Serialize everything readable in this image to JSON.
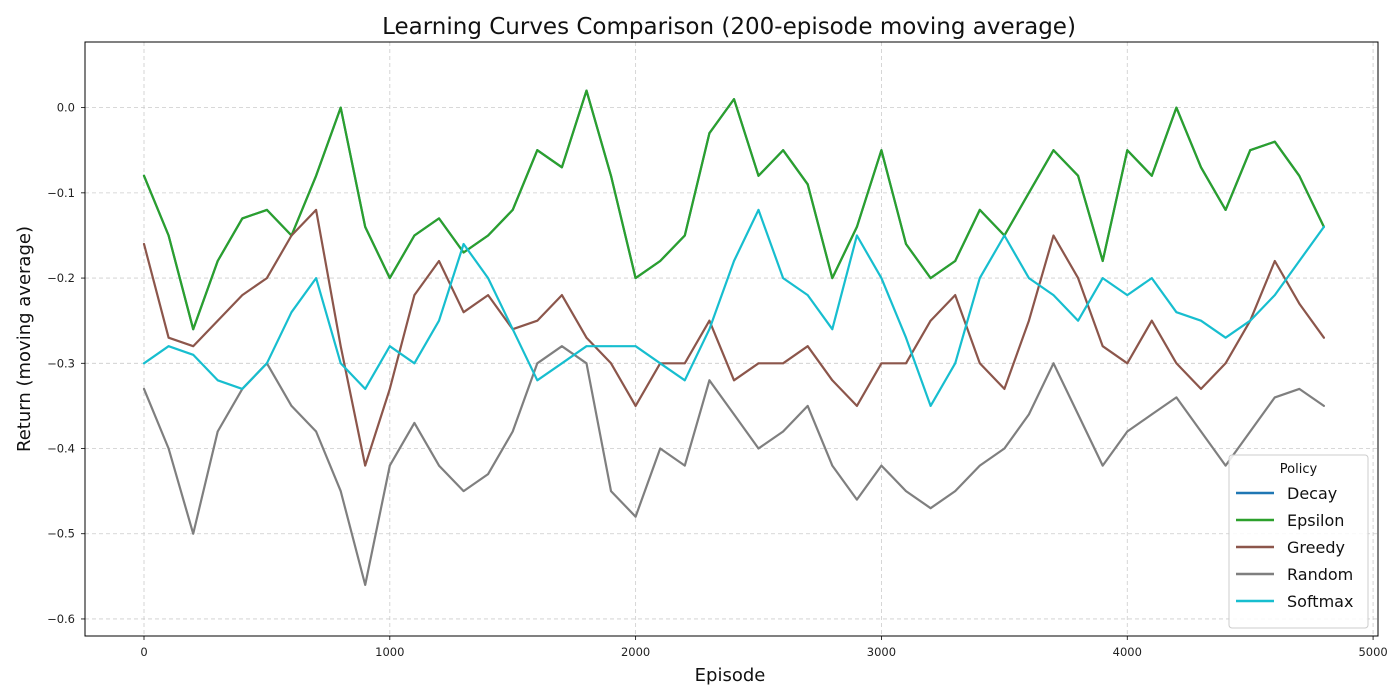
{
  "chart_data": {
    "type": "line",
    "title": "Learning Curves Comparison (200-episode moving average)",
    "xlabel": "Episode",
    "ylabel": "Return (moving average)",
    "xlim": [
      -240,
      5020
    ],
    "ylim": [
      -0.62,
      0.077
    ],
    "xticks": [
      0,
      1000,
      2000,
      3000,
      4000,
      5000
    ],
    "yticks": [
      -0.6,
      -0.5,
      -0.4,
      -0.3,
      -0.2,
      -0.1,
      0.0
    ],
    "xtick_labels": [
      "0",
      "1000",
      "2000",
      "3000",
      "4000",
      "5000"
    ],
    "ytick_labels": [
      "−0.6",
      "−0.5",
      "−0.4",
      "−0.3",
      "−0.2",
      "−0.1",
      "0.0"
    ],
    "grid": true,
    "legend": {
      "title": "Policy",
      "placement": "lower-right"
    },
    "series": [
      {
        "name": "Decay",
        "color": "#1f77b4",
        "x": [
          0,
          100,
          200,
          300,
          400,
          500,
          600,
          700,
          800,
          900,
          1000,
          1100,
          1200,
          1300,
          1400,
          1500,
          1600,
          1700,
          1800,
          1900,
          2000,
          2100,
          2200,
          2300,
          2400,
          2500,
          2600,
          2700,
          2800,
          2900,
          3000,
          3100,
          3200,
          3300,
          3400,
          3500,
          3600,
          3700,
          3800,
          3900,
          4000,
          4100,
          4200,
          4300,
          4400,
          4500,
          4600,
          4700,
          4800
        ],
        "values": [
          -0.08,
          -0.15,
          -0.26,
          -0.18,
          -0.13,
          -0.12,
          -0.15,
          -0.08,
          0.0,
          -0.14,
          -0.2,
          -0.15,
          -0.13,
          -0.17,
          -0.15,
          -0.12,
          -0.05,
          -0.07,
          0.02,
          -0.08,
          -0.2,
          -0.18,
          -0.15,
          -0.03,
          0.01,
          -0.08,
          -0.05,
          -0.09,
          -0.2,
          -0.14,
          -0.05,
          -0.16,
          -0.2,
          -0.18,
          -0.12,
          -0.15,
          -0.1,
          -0.05,
          -0.08,
          -0.18,
          -0.05,
          -0.08,
          0.0,
          -0.07,
          -0.12,
          -0.05,
          -0.04,
          -0.08,
          -0.14
        ]
      },
      {
        "name": "Epsilon",
        "color": "#2ca02c",
        "x": [
          0,
          100,
          200,
          300,
          400,
          500,
          600,
          700,
          800,
          900,
          1000,
          1100,
          1200,
          1300,
          1400,
          1500,
          1600,
          1700,
          1800,
          1900,
          2000,
          2100,
          2200,
          2300,
          2400,
          2500,
          2600,
          2700,
          2800,
          2900,
          3000,
          3100,
          3200,
          3300,
          3400,
          3500,
          3600,
          3700,
          3800,
          3900,
          4000,
          4100,
          4200,
          4300,
          4400,
          4500,
          4600,
          4700,
          4800
        ],
        "values": [
          -0.08,
          -0.15,
          -0.26,
          -0.18,
          -0.13,
          -0.12,
          -0.15,
          -0.08,
          0.0,
          -0.14,
          -0.2,
          -0.15,
          -0.13,
          -0.17,
          -0.15,
          -0.12,
          -0.05,
          -0.07,
          0.02,
          -0.08,
          -0.2,
          -0.18,
          -0.15,
          -0.03,
          0.01,
          -0.08,
          -0.05,
          -0.09,
          -0.2,
          -0.14,
          -0.05,
          -0.16,
          -0.2,
          -0.18,
          -0.12,
          -0.15,
          -0.1,
          -0.05,
          -0.08,
          -0.18,
          -0.05,
          -0.08,
          0.0,
          -0.07,
          -0.12,
          -0.05,
          -0.04,
          -0.08,
          -0.14
        ]
      },
      {
        "name": "Greedy",
        "color": "#8c564b",
        "x": [
          0,
          100,
          200,
          300,
          400,
          500,
          600,
          700,
          800,
          900,
          1000,
          1100,
          1200,
          1300,
          1400,
          1500,
          1600,
          1700,
          1800,
          1900,
          2000,
          2100,
          2200,
          2300,
          2400,
          2500,
          2600,
          2700,
          2800,
          2900,
          3000,
          3100,
          3200,
          3300,
          3400,
          3500,
          3600,
          3700,
          3800,
          3900,
          4000,
          4100,
          4200,
          4300,
          4400,
          4500,
          4600,
          4700,
          4800
        ],
        "values": [
          -0.16,
          -0.27,
          -0.28,
          -0.25,
          -0.22,
          -0.2,
          -0.15,
          -0.12,
          -0.28,
          -0.42,
          -0.33,
          -0.22,
          -0.18,
          -0.24,
          -0.22,
          -0.26,
          -0.25,
          -0.22,
          -0.27,
          -0.3,
          -0.35,
          -0.3,
          -0.3,
          -0.25,
          -0.32,
          -0.3,
          -0.3,
          -0.28,
          -0.32,
          -0.35,
          -0.3,
          -0.3,
          -0.25,
          -0.22,
          -0.3,
          -0.33,
          -0.25,
          -0.15,
          -0.2,
          -0.28,
          -0.3,
          -0.25,
          -0.3,
          -0.33,
          -0.3,
          -0.25,
          -0.18,
          -0.23,
          -0.27
        ]
      },
      {
        "name": "Random",
        "color": "#7f7f7f",
        "x": [
          0,
          100,
          200,
          300,
          400,
          500,
          600,
          700,
          800,
          900,
          1000,
          1100,
          1200,
          1300,
          1400,
          1500,
          1600,
          1700,
          1800,
          1900,
          2000,
          2100,
          2200,
          2300,
          2400,
          2500,
          2600,
          2700,
          2800,
          2900,
          3000,
          3100,
          3200,
          3300,
          3400,
          3500,
          3600,
          3700,
          3800,
          3900,
          4000,
          4100,
          4200,
          4300,
          4400,
          4500,
          4600,
          4700,
          4800
        ],
        "values": [
          -0.33,
          -0.4,
          -0.5,
          -0.38,
          -0.33,
          -0.3,
          -0.35,
          -0.38,
          -0.45,
          -0.56,
          -0.42,
          -0.37,
          -0.42,
          -0.45,
          -0.43,
          -0.38,
          -0.3,
          -0.28,
          -0.3,
          -0.45,
          -0.48,
          -0.4,
          -0.42,
          -0.32,
          -0.36,
          -0.4,
          -0.38,
          -0.35,
          -0.42,
          -0.46,
          -0.42,
          -0.45,
          -0.47,
          -0.45,
          -0.42,
          -0.4,
          -0.36,
          -0.3,
          -0.36,
          -0.42,
          -0.38,
          -0.36,
          -0.34,
          -0.38,
          -0.42,
          -0.38,
          -0.34,
          -0.33,
          -0.35
        ]
      },
      {
        "name": "Softmax",
        "color": "#17becf",
        "x": [
          0,
          100,
          200,
          300,
          400,
          500,
          600,
          700,
          800,
          900,
          1000,
          1100,
          1200,
          1300,
          1400,
          1500,
          1600,
          1700,
          1800,
          1900,
          2000,
          2100,
          2200,
          2300,
          2400,
          2500,
          2600,
          2700,
          2800,
          2900,
          3000,
          3100,
          3200,
          3300,
          3400,
          3500,
          3600,
          3700,
          3800,
          3900,
          4000,
          4100,
          4200,
          4300,
          4400,
          4500,
          4600,
          4700,
          4800
        ],
        "values": [
          -0.3,
          -0.28,
          -0.29,
          -0.32,
          -0.33,
          -0.3,
          -0.24,
          -0.2,
          -0.3,
          -0.33,
          -0.28,
          -0.3,
          -0.25,
          -0.16,
          -0.2,
          -0.26,
          -0.32,
          -0.3,
          -0.28,
          -0.28,
          -0.28,
          -0.3,
          -0.32,
          -0.26,
          -0.18,
          -0.12,
          -0.2,
          -0.22,
          -0.26,
          -0.15,
          -0.2,
          -0.27,
          -0.35,
          -0.3,
          -0.2,
          -0.15,
          -0.2,
          -0.22,
          -0.25,
          -0.2,
          -0.22,
          -0.2,
          -0.24,
          -0.25,
          -0.27,
          -0.25,
          -0.22,
          -0.18,
          -0.14
        ]
      }
    ]
  }
}
